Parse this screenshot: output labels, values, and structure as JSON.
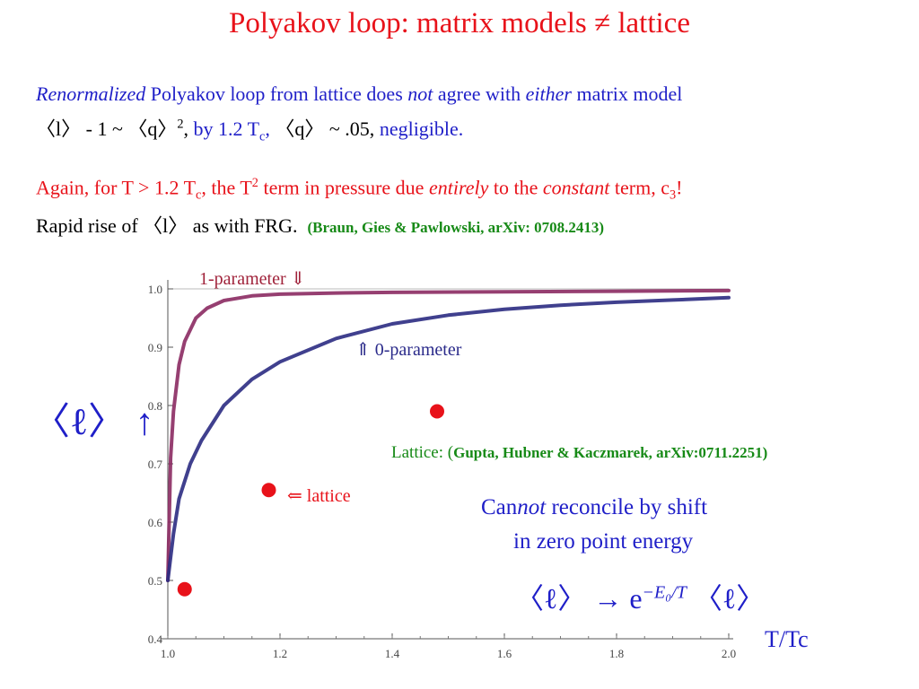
{
  "title": "Polyakov loop: matrix models ≠ lattice",
  "para1": {
    "l1_a": "Renormalized",
    "l1_b": " Polyakov loop from lattice does ",
    "l1_c": "not",
    "l1_d": " agree with ",
    "l1_e": "either",
    "l1_f": " matrix model",
    "l2_a": "〈l〉  - 1 ~ 〈q〉",
    "l2_sup": "2",
    "l2_b": ",  ",
    "l2_c": "by 1.2 T",
    "l2_c_sub": "c",
    "l2_c_end": ",",
    "l2_d": "   〈q〉  ~ .05,  ",
    "l2_e": "negligible."
  },
  "para2": {
    "a": "Again, for T > 1.2 T",
    "a_sub": "c",
    "b": ", the T",
    "b_sup": "2",
    "c": " term in pressure due ",
    "d": "entirely",
    "e": " to the ",
    "f": "constant",
    "g": " term, c",
    "g_sub": "3",
    "h": "!",
    "r1": "Rapid rise of 〈l〉  as with FRG.",
    "r2": "(Braun, Gies & Pawlowski, arXiv: 0708.2413)"
  },
  "annotations": {
    "one_param": "1-parameter ⇓",
    "zero_param": "⇑ 0-parameter",
    "lattice_arrow": "⇐ lattice",
    "lattice_ref_a": "Lattice: (",
    "lattice_ref_b": "Gupta, Hubner & Kaczmarek,  arXiv:0711.2251)",
    "cannot_a": "Can",
    "cannot_b": "not",
    "cannot_c": " reconcile by shift",
    "cannot_d": "in zero point energy",
    "ylabel": "〈ℓ〉 ↑",
    "xlabel": "T/Tc",
    "formula_a": "〈ℓ〉 → e",
    "formula_sup": "−E₀/T",
    "formula_b": " 〈ℓ〉"
  },
  "chart_data": {
    "type": "line",
    "xlim": [
      1.0,
      2.0
    ],
    "ylim": [
      0.4,
      1.0
    ],
    "xticks": [
      "1.0",
      "1.2",
      "1.4",
      "1.6",
      "1.8",
      "2.0"
    ],
    "yticks": [
      "0.4",
      "0.5",
      "0.6",
      "0.7",
      "0.8",
      "0.9",
      "1.0"
    ],
    "series": [
      {
        "name": "1-parameter",
        "color": "#8b2a62",
        "x": [
          1.0,
          1.005,
          1.01,
          1.02,
          1.03,
          1.05,
          1.07,
          1.1,
          1.15,
          1.2,
          1.3,
          1.4,
          1.6,
          1.8,
          2.0
        ],
        "y": [
          0.5,
          0.71,
          0.79,
          0.87,
          0.91,
          0.95,
          0.967,
          0.98,
          0.988,
          0.991,
          0.993,
          0.994,
          0.995,
          0.996,
          0.997
        ]
      },
      {
        "name": "0-parameter",
        "color": "#2b2b82",
        "x": [
          1.0,
          1.01,
          1.02,
          1.04,
          1.06,
          1.1,
          1.15,
          1.2,
          1.3,
          1.4,
          1.5,
          1.6,
          1.7,
          1.8,
          1.9,
          2.0
        ],
        "y": [
          0.5,
          0.58,
          0.64,
          0.7,
          0.74,
          0.8,
          0.845,
          0.875,
          0.915,
          0.94,
          0.955,
          0.965,
          0.972,
          0.977,
          0.981,
          0.985
        ]
      }
    ],
    "lattice_points": {
      "color": "#e8121a",
      "x": [
        1.03,
        1.18,
        1.48
      ],
      "y": [
        0.485,
        0.655,
        0.79
      ]
    }
  }
}
